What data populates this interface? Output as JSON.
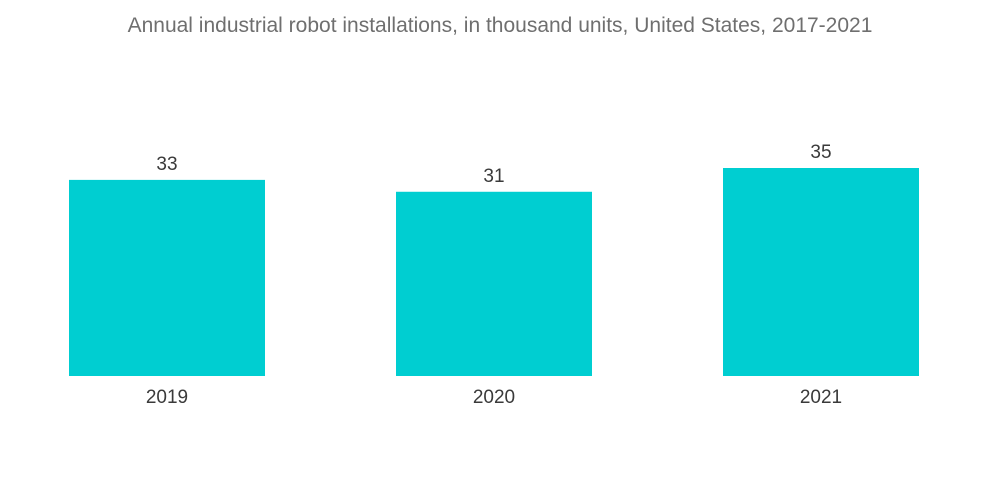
{
  "chart_data": {
    "type": "bar",
    "title": "Annual industrial robot installations, in thousand units, United States, 2017-2021",
    "categories": [
      "2019",
      "2020",
      "2021"
    ],
    "values": [
      33,
      31,
      35
    ],
    "xlabel": "",
    "ylabel": "",
    "ylim": [
      0,
      35
    ],
    "grid": false,
    "legend": "none",
    "bar_color": "#00ced1"
  }
}
